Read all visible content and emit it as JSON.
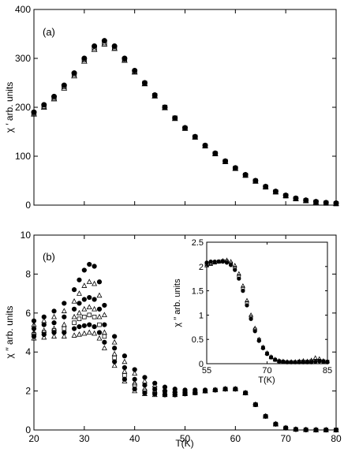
{
  "chart_data": [
    {
      "type": "scatter",
      "panel_label": "(a)",
      "xlim": [
        20,
        80
      ],
      "ylim": [
        0,
        400
      ],
      "xticks": [
        20,
        30,
        40,
        50,
        60,
        70,
        80
      ],
      "show_xtick_labels": false,
      "yticks": [
        0,
        100,
        200,
        300,
        400
      ],
      "xlabel": "",
      "ylabel": "χ ′ arb. units",
      "grid": false,
      "series": [
        {
          "marker": "filled-circle",
          "x": [
            20,
            22,
            24,
            26,
            28,
            30,
            32,
            34,
            36,
            38,
            40,
            42,
            44,
            46,
            48,
            50,
            52,
            54,
            56,
            58,
            60,
            62,
            64,
            66,
            68,
            70,
            72,
            74,
            76,
            78,
            80
          ],
          "y": [
            190,
            205,
            222,
            245,
            270,
            300,
            325,
            336,
            325,
            300,
            275,
            250,
            225,
            200,
            178,
            158,
            140,
            122,
            106,
            90,
            76,
            62,
            50,
            38,
            28,
            20,
            14,
            10,
            7,
            5,
            4
          ]
        },
        {
          "marker": "open-triangle",
          "x": [
            20,
            22,
            24,
            26,
            28,
            30,
            32,
            34,
            36,
            38,
            40,
            42,
            44,
            46,
            48,
            50,
            52,
            54,
            56,
            58,
            60,
            62,
            64,
            66,
            68,
            70,
            72,
            74,
            76,
            78,
            80
          ],
          "y": [
            186,
            200,
            217,
            239,
            264,
            294,
            318,
            329,
            320,
            296,
            272,
            248,
            223,
            199,
            177,
            157,
            139,
            121,
            105,
            89,
            75,
            61,
            49,
            37,
            27,
            19,
            13,
            9,
            6,
            4,
            3
          ]
        },
        {
          "marker": "open-square",
          "x": [
            20,
            22,
            24,
            26,
            28,
            30,
            32,
            34,
            36,
            38,
            40,
            42,
            44,
            46,
            48,
            50,
            52,
            54,
            56,
            58,
            60,
            62,
            64,
            66,
            68,
            70,
            72,
            74,
            76,
            78,
            80
          ],
          "y": [
            188,
            202,
            219,
            242,
            267,
            297,
            321,
            332,
            322,
            298,
            273,
            249,
            224,
            200,
            178,
            157,
            139,
            121,
            105,
            89,
            75,
            61,
            49,
            37,
            27,
            19,
            13,
            9,
            6,
            4,
            3
          ]
        }
      ]
    },
    {
      "type": "scatter",
      "panel_label": "(b)",
      "xlim": [
        20,
        80
      ],
      "ylim": [
        0,
        10
      ],
      "xticks": [
        20,
        30,
        40,
        50,
        60,
        70,
        80
      ],
      "yticks": [
        0,
        2,
        4,
        6,
        8,
        10
      ],
      "xlabel": "T(K)",
      "ylabel": "χ ′′ arb. units",
      "grid": false,
      "series": [
        {
          "marker": "filled-circle",
          "x": [
            20,
            22,
            24,
            26,
            28,
            29,
            30,
            31,
            32,
            33,
            34,
            36,
            38,
            40,
            42,
            44,
            46,
            48,
            50,
            52,
            54,
            56,
            58,
            60,
            62,
            64,
            66,
            68,
            70,
            72,
            74,
            76,
            78,
            80
          ],
          "y": [
            5.6,
            5.8,
            6.1,
            6.5,
            7.2,
            7.7,
            8.2,
            8.5,
            8.4,
            7.6,
            6.4,
            4.8,
            3.8,
            3.1,
            2.7,
            2.4,
            2.2,
            2.1,
            2.05,
            2.05,
            2.05,
            2.05,
            2.1,
            2.1,
            1.9,
            1.3,
            0.7,
            0.3,
            0.1,
            0.03,
            0.01,
            0,
            0,
            0
          ]
        },
        {
          "marker": "open-triangle",
          "x": [
            20,
            22,
            24,
            26,
            28,
            29,
            30,
            31,
            32,
            33,
            34,
            36,
            38,
            40,
            42,
            44,
            46,
            48,
            50,
            52,
            54,
            56,
            58,
            60,
            62,
            64,
            66,
            68,
            70,
            72,
            74,
            76,
            78,
            80
          ],
          "y": [
            5.4,
            5.6,
            5.8,
            6.1,
            6.6,
            7.0,
            7.4,
            7.6,
            7.5,
            6.9,
            5.9,
            4.5,
            3.5,
            2.9,
            2.5,
            2.3,
            2.1,
            2.0,
            2.0,
            2.0,
            2.0,
            2.05,
            2.1,
            2.1,
            1.9,
            1.3,
            0.7,
            0.3,
            0.1,
            0.03,
            0.01,
            0,
            0,
            0
          ]
        },
        {
          "marker": "filled-circle",
          "x": [
            20,
            22,
            24,
            26,
            28,
            29,
            30,
            31,
            32,
            33,
            34,
            36,
            38,
            40,
            42,
            44,
            46,
            48,
            50,
            52,
            54,
            56,
            58,
            60,
            62,
            64,
            66,
            68,
            70,
            72,
            74,
            76,
            78,
            80
          ],
          "y": [
            5.2,
            5.4,
            5.5,
            5.8,
            6.2,
            6.5,
            6.7,
            6.8,
            6.7,
            6.2,
            5.4,
            4.2,
            3.2,
            2.6,
            2.3,
            2.1,
            2.0,
            1.95,
            1.95,
            1.95,
            2.0,
            2.05,
            2.1,
            2.1,
            1.9,
            1.3,
            0.7,
            0.3,
            0.1,
            0.03,
            0.01,
            0,
            0,
            0
          ]
        },
        {
          "marker": "open-triangle",
          "x": [
            20,
            22,
            24,
            26,
            28,
            29,
            30,
            31,
            32,
            33,
            34,
            36,
            38,
            40,
            42,
            44,
            46,
            48,
            50,
            52,
            54,
            56,
            58,
            60,
            62,
            64,
            66,
            68,
            70,
            72,
            74,
            76,
            78,
            80
          ],
          "y": [
            5.0,
            5.1,
            5.2,
            5.4,
            5.8,
            6.0,
            6.2,
            6.3,
            6.2,
            5.8,
            5.0,
            3.9,
            3.0,
            2.4,
            2.1,
            2.0,
            1.9,
            1.9,
            1.9,
            1.95,
            2.0,
            2.05,
            2.1,
            2.1,
            1.9,
            1.3,
            0.7,
            0.3,
            0.1,
            0.03,
            0.01,
            0,
            0,
            0
          ]
        },
        {
          "marker": "open-square",
          "x": [
            20,
            22,
            24,
            26,
            28,
            29,
            30,
            31,
            32,
            33,
            34,
            36,
            38,
            40,
            42,
            44,
            46,
            48,
            50,
            52,
            54,
            56,
            58,
            60,
            62,
            64,
            66,
            68,
            70,
            72,
            74,
            76,
            78,
            80
          ],
          "y": [
            4.9,
            5.0,
            5.1,
            5.2,
            5.5,
            5.7,
            5.8,
            5.9,
            5.8,
            5.4,
            4.8,
            3.7,
            2.8,
            2.3,
            2.0,
            1.9,
            1.85,
            1.85,
            1.9,
            1.95,
            2.0,
            2.05,
            2.1,
            2.1,
            1.9,
            1.3,
            0.7,
            0.3,
            0.1,
            0.03,
            0.01,
            0,
            0,
            0
          ]
        },
        {
          "marker": "filled-circle",
          "x": [
            20,
            22,
            24,
            26,
            28,
            29,
            30,
            31,
            32,
            33,
            34,
            36,
            38,
            40,
            42,
            44,
            46,
            48,
            50,
            52,
            54,
            56,
            58,
            60,
            62,
            64,
            66,
            68,
            70,
            72,
            74,
            76,
            78,
            80
          ],
          "y": [
            4.8,
            4.9,
            5.0,
            5.0,
            5.2,
            5.3,
            5.35,
            5.4,
            5.3,
            5.0,
            4.5,
            3.5,
            2.6,
            2.1,
            1.9,
            1.85,
            1.8,
            1.8,
            1.85,
            1.9,
            2.0,
            2.05,
            2.1,
            2.1,
            1.9,
            1.3,
            0.7,
            0.3,
            0.1,
            0.03,
            0.01,
            0,
            0,
            0
          ]
        },
        {
          "marker": "open-triangle",
          "x": [
            20,
            22,
            24,
            26,
            28,
            29,
            30,
            31,
            32,
            33,
            34,
            36,
            38,
            40,
            42,
            44,
            46,
            48,
            50,
            52,
            54,
            56,
            58,
            60,
            62,
            64,
            66,
            68,
            70,
            72,
            74,
            76,
            78,
            80
          ],
          "y": [
            4.7,
            4.75,
            4.8,
            4.8,
            4.85,
            4.9,
            4.95,
            5.0,
            4.95,
            4.7,
            4.2,
            3.3,
            2.5,
            2.0,
            1.85,
            1.8,
            1.8,
            1.8,
            1.85,
            1.9,
            2.0,
            2.05,
            2.1,
            2.1,
            1.9,
            1.3,
            0.7,
            0.3,
            0.1,
            0.03,
            0.01,
            0,
            0,
            0
          ]
        }
      ]
    },
    {
      "type": "scatter",
      "panel_label": "",
      "inset_of": "(b)",
      "xlim": [
        55,
        85
      ],
      "ylim": [
        0,
        2.5
      ],
      "xticks": [
        55,
        70,
        85
      ],
      "yticks": [
        0,
        0.5,
        1,
        1.5,
        2,
        2.5
      ],
      "xlabel": "T(K)",
      "ylabel": "χ ′′ arb. units",
      "grid": false,
      "series": [
        {
          "marker": "filled-circle",
          "x": [
            55,
            56,
            57,
            58,
            59,
            60,
            61,
            62,
            63,
            64,
            65,
            66,
            67,
            68,
            69,
            70,
            71,
            72,
            73,
            74,
            75,
            76,
            77,
            78,
            79,
            80,
            81,
            82,
            83,
            84,
            85
          ],
          "y": [
            2.08,
            2.1,
            2.1,
            2.1,
            2.1,
            2.08,
            2.03,
            1.93,
            1.75,
            1.5,
            1.2,
            0.92,
            0.67,
            0.47,
            0.32,
            0.2,
            0.13,
            0.08,
            0.05,
            0.04,
            0.03,
            0.03,
            0.03,
            0.03,
            0.03,
            0.03,
            0.03,
            0.04,
            0.05,
            0.04,
            0.03
          ]
        },
        {
          "marker": "open-triangle",
          "x": [
            55,
            56,
            57,
            58,
            59,
            60,
            61,
            62,
            63,
            64,
            65,
            66,
            67,
            68,
            69,
            70,
            71,
            72,
            73,
            74,
            75,
            76,
            77,
            78,
            79,
            80,
            81,
            82,
            83,
            84,
            85
          ],
          "y": [
            2.02,
            2.05,
            2.08,
            2.1,
            2.12,
            2.13,
            2.1,
            2.02,
            1.85,
            1.6,
            1.3,
            1.0,
            0.73,
            0.5,
            0.34,
            0.22,
            0.14,
            0.09,
            0.06,
            0.05,
            0.04,
            0.04,
            0.04,
            0.05,
            0.06,
            0.05,
            0.07,
            0.12,
            0.1,
            0.06,
            0.05
          ]
        },
        {
          "marker": "open-square",
          "x": [
            55,
            56,
            57,
            58,
            59,
            60,
            61,
            62,
            63,
            64,
            65,
            66,
            67,
            68,
            69,
            70,
            71,
            72,
            73,
            74,
            75,
            76,
            77,
            78,
            79,
            80,
            81,
            82,
            83,
            84,
            85
          ],
          "y": [
            2.05,
            2.07,
            2.09,
            2.1,
            2.11,
            2.1,
            2.06,
            1.97,
            1.8,
            1.55,
            1.25,
            0.96,
            0.7,
            0.49,
            0.33,
            0.21,
            0.13,
            0.08,
            0.05,
            0.04,
            0.03,
            0.03,
            0.03,
            0.04,
            0.04,
            0.04,
            0.05,
            0.06,
            0.06,
            0.05,
            0.04
          ]
        }
      ]
    }
  ]
}
